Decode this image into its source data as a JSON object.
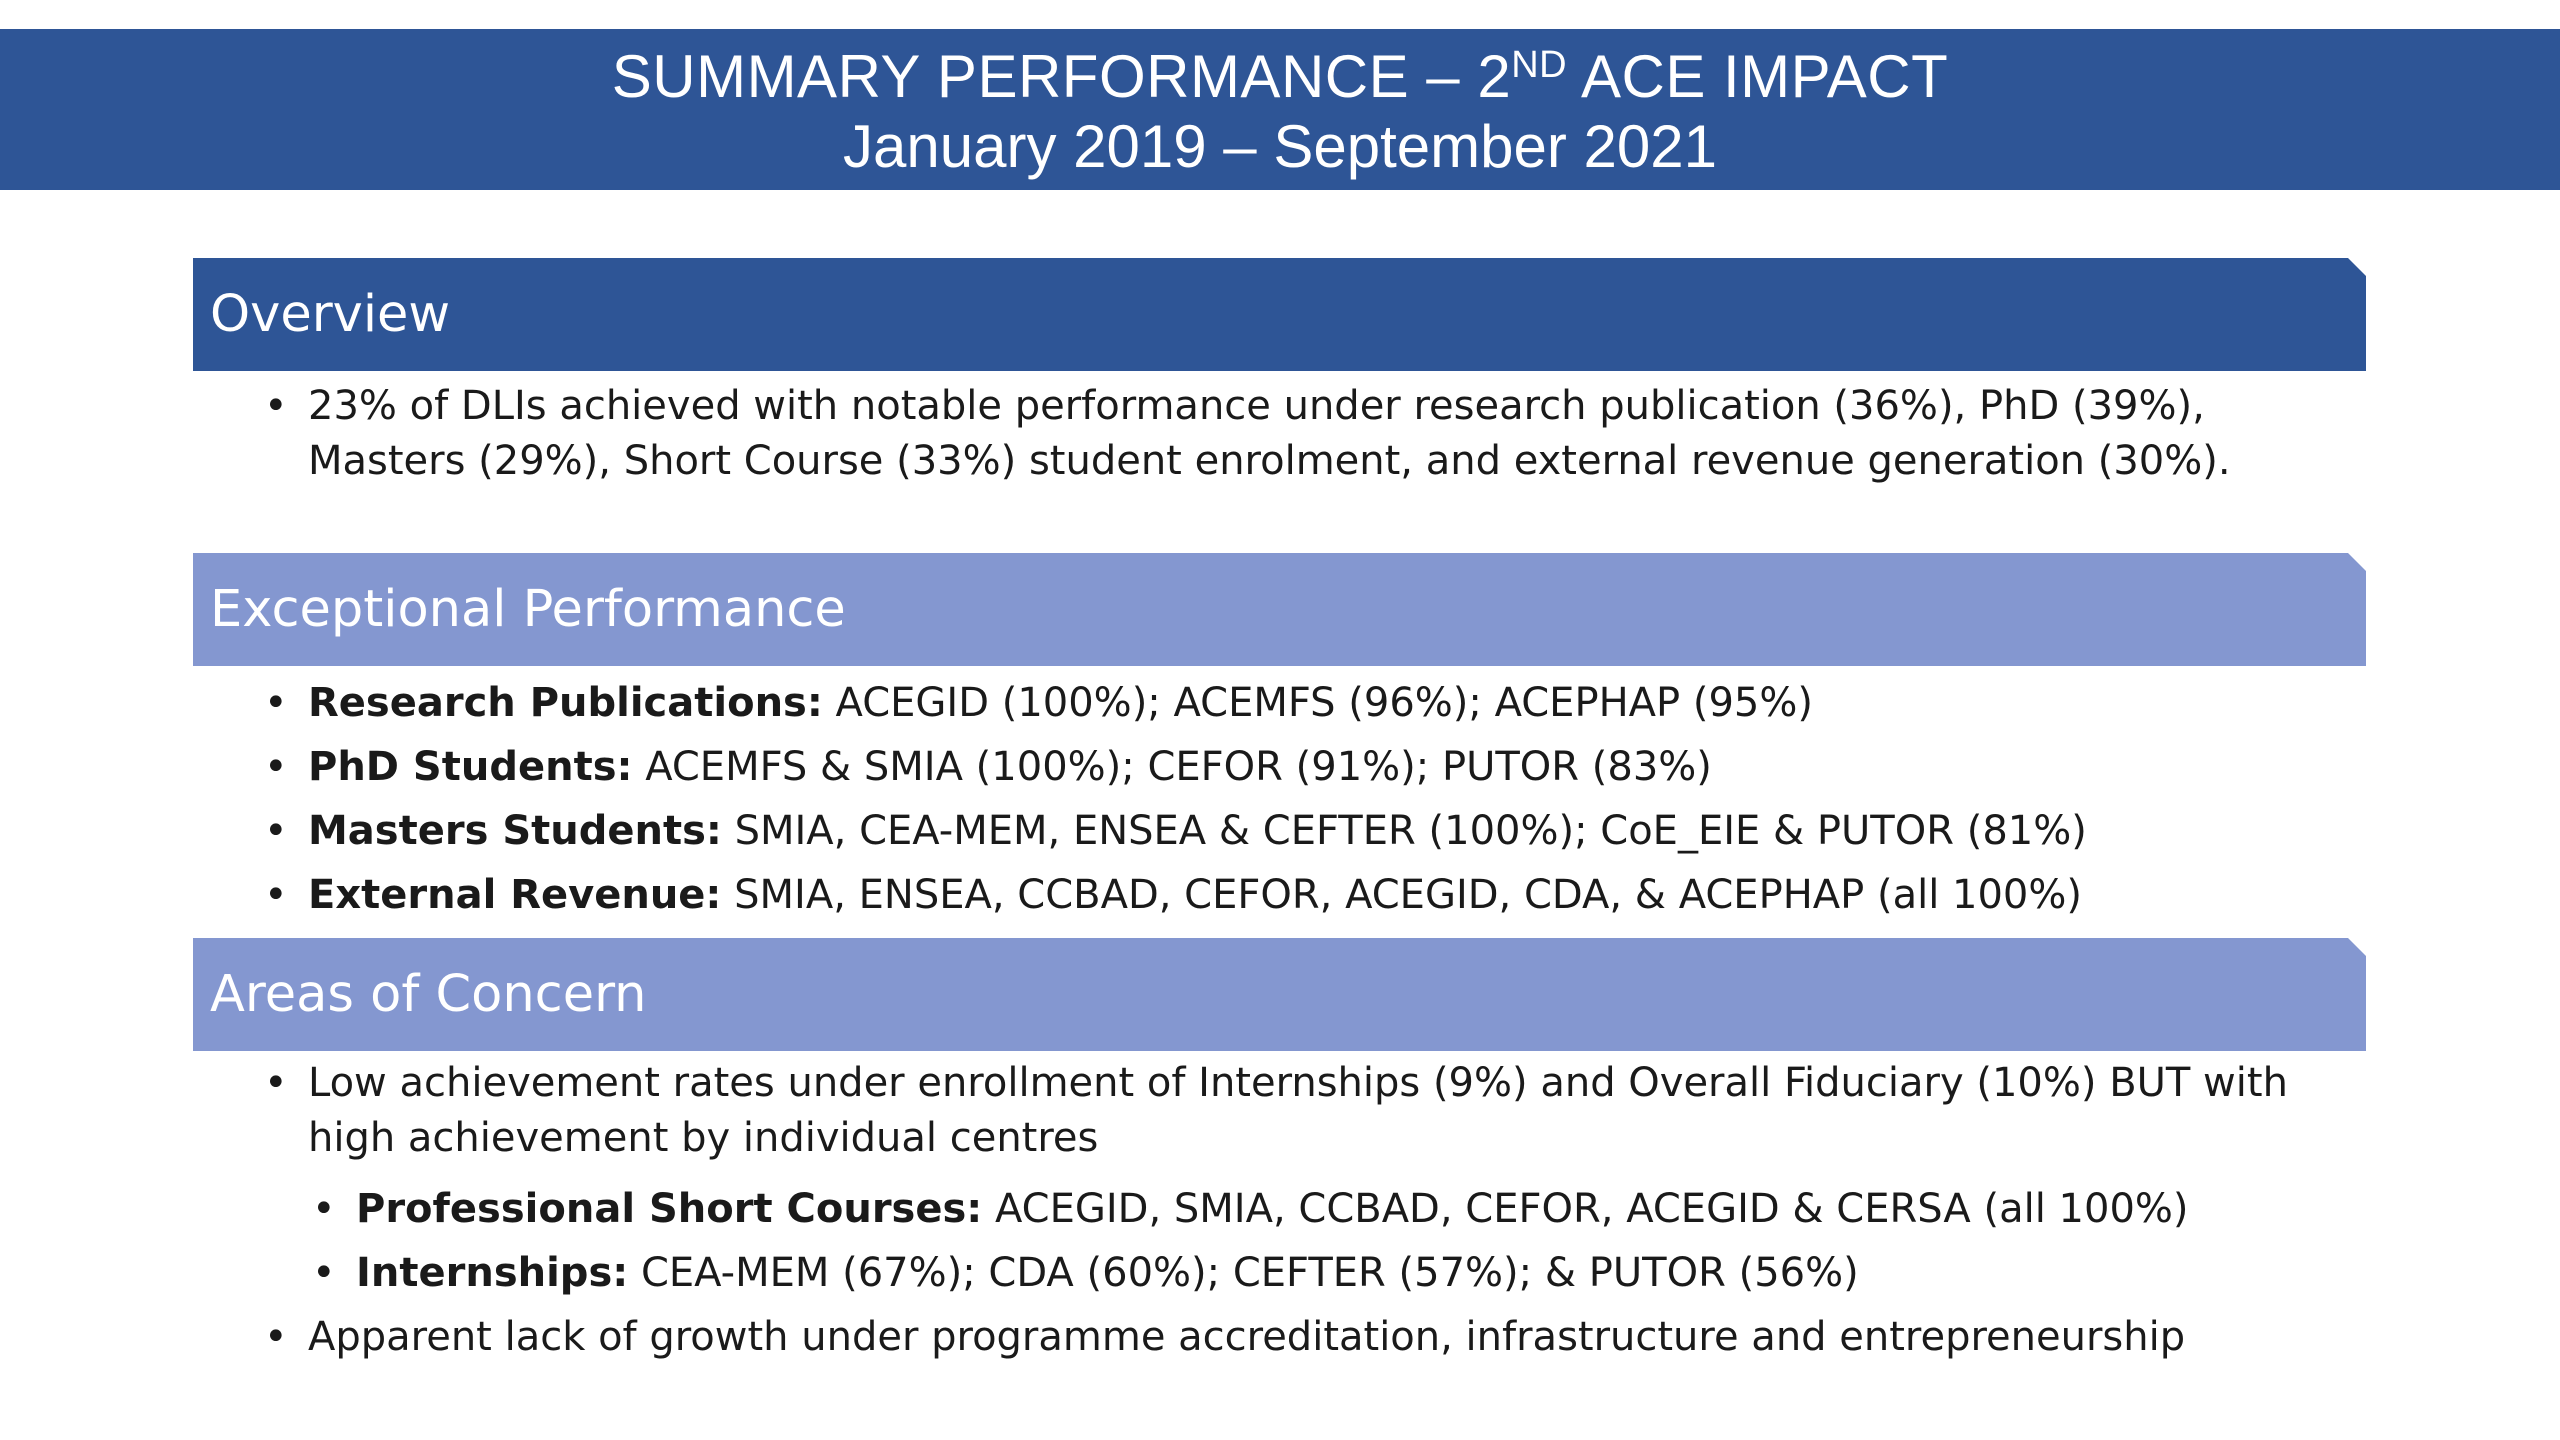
{
  "title": {
    "line1_pre": "SUMMARY PERFORMANCE – 2",
    "line1_sup": "ND",
    "line1_post": " ACE IMPACT",
    "line2": "January 2019 – September 2021"
  },
  "sections": {
    "overview": {
      "heading": "Overview",
      "bullets": [
        "23% of DLIs achieved with notable performance under research publication (36%), PhD (39%), Masters (29%), Short Course (33%) student enrolment, and external revenue generation (30%)."
      ]
    },
    "exceptional": {
      "heading": "Exceptional Performance",
      "items": [
        {
          "label": "Research Publications:",
          "text": " ACEGID (100%); ACEMFS (96%); ACEPHAP (95%)"
        },
        {
          "label": "PhD Students:",
          "text": " ACEMFS & SMIA (100%); CEFOR (91%); PUTOR (83%)"
        },
        {
          "label": "Masters Students:",
          "text": " SMIA, CEA-MEM, ENSEA & CEFTER (100%); CoE_EIE & PUTOR (81%)"
        },
        {
          "label": "External Revenue:",
          "text": " SMIA, ENSEA, CCBAD, CEFOR, ACEGID, CDA, & ACEPHAP (all 100%)"
        }
      ]
    },
    "concern": {
      "heading": "Areas of Concern",
      "bullet1": "Low achievement rates under enrollment of Internships (9%) and Overall Fiduciary (10%) BUT with high achievement by individual centres",
      "sub_items": [
        {
          "label": "Professional Short Courses:",
          "text": " ACEGID, SMIA, CCBAD, CEFOR, ACEGID & CERSA (all 100%)"
        },
        {
          "label": "Internships:",
          "text": " CEA-MEM (67%); CDA (60%); CEFTER (57%); & PUTOR (56%)"
        }
      ],
      "bullet2": "Apparent lack of growth under programme accreditation, infrastructure and entrepreneurship"
    }
  },
  "bullet_glyph": "•",
  "colors": {
    "title_bar": "#2e5596",
    "overview_bar": "#2e5596",
    "section_bar_light": "#8497d0",
    "text": "#1a1a1a"
  }
}
